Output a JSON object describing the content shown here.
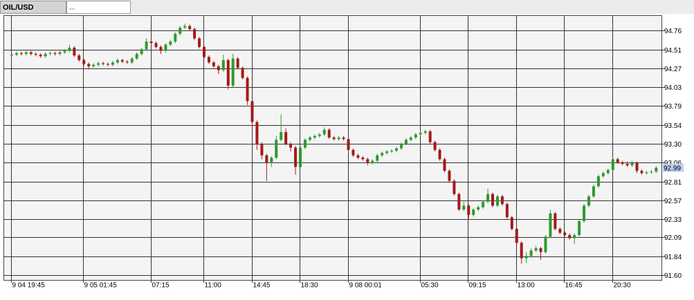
{
  "tabs": [
    "OIL/USD",
    "..."
  ],
  "chart_data": {
    "type": "candlestick",
    "categories": [
      "9 04 19:45",
      null,
      null,
      null,
      null,
      null,
      null,
      null,
      null,
      null,
      null,
      null,
      null,
      null,
      null,
      "9 05 01:45",
      null,
      null,
      null,
      null,
      null,
      null,
      null,
      null,
      null,
      null,
      null,
      null,
      null,
      "07:15",
      null,
      null,
      null,
      null,
      null,
      null,
      null,
      null,
      null,
      null,
      "11:00",
      null,
      null,
      null,
      null,
      null,
      null,
      null,
      null,
      null,
      "14:45",
      null,
      null,
      null,
      null,
      null,
      null,
      null,
      null,
      null,
      "18:30",
      null,
      null,
      null,
      null,
      null,
      null,
      null,
      null,
      null,
      "9 08 00:01",
      null,
      null,
      null,
      null,
      null,
      null,
      null,
      null,
      null,
      null,
      null,
      null,
      null,
      null,
      "05:30",
      null,
      null,
      null,
      null,
      null,
      null,
      null,
      null,
      null,
      "09:15",
      null,
      null,
      null,
      null,
      null,
      null,
      null,
      null,
      null,
      "13:00",
      null,
      null,
      null,
      null,
      null,
      null,
      null,
      null,
      null,
      "16:45",
      null,
      null,
      null,
      null,
      null,
      null,
      null,
      null,
      null,
      "20:30",
      null,
      null,
      null,
      null,
      null,
      null,
      null,
      null,
      null
    ],
    "open": [
      94.44,
      94.45,
      94.47,
      94.46,
      94.48,
      94.46,
      94.45,
      94.43,
      94.46,
      94.47,
      94.46,
      94.48,
      94.5,
      94.54,
      94.44,
      94.38,
      94.33,
      94.3,
      94.32,
      94.34,
      94.33,
      94.32,
      94.35,
      94.38,
      94.36,
      94.35,
      94.4,
      94.46,
      94.52,
      94.62,
      94.6,
      94.55,
      94.5,
      94.58,
      94.62,
      94.72,
      94.8,
      94.82,
      94.78,
      94.66,
      94.55,
      94.42,
      94.35,
      94.3,
      94.25,
      94.38,
      94.05,
      94.4,
      94.28,
      94.15,
      93.85,
      93.58,
      93.3,
      93.15,
      93.05,
      93.12,
      93.35,
      93.45,
      93.3,
      93.25,
      93.0,
      93.25,
      93.35,
      93.38,
      93.4,
      93.42,
      93.48,
      93.38,
      93.36,
      93.38,
      93.36,
      93.22,
      93.15,
      93.12,
      93.1,
      93.05,
      93.08,
      93.15,
      93.18,
      93.2,
      93.21,
      93.24,
      93.3,
      93.35,
      93.38,
      93.42,
      93.44,
      93.46,
      93.32,
      93.22,
      93.1,
      92.95,
      92.82,
      92.65,
      92.45,
      92.5,
      92.38,
      92.45,
      92.48,
      92.55,
      92.65,
      92.5,
      92.62,
      92.52,
      92.35,
      92.2,
      92.02,
      91.82,
      91.85,
      91.92,
      91.95,
      91.9,
      92.1,
      92.4,
      92.2,
      92.15,
      92.12,
      92.08,
      92.12,
      92.3,
      92.5,
      92.62,
      92.75,
      92.88,
      92.92,
      92.96,
      93.1,
      93.06,
      93.04,
      93.02,
      93.05,
      92.95,
      92.92,
      92.93,
      92.94
    ],
    "high": [
      94.47,
      94.49,
      94.49,
      94.5,
      94.5,
      94.48,
      94.47,
      94.48,
      94.49,
      94.49,
      94.5,
      94.52,
      94.58,
      94.56,
      94.46,
      94.4,
      94.35,
      94.34,
      94.36,
      94.36,
      94.35,
      94.37,
      94.4,
      94.4,
      94.38,
      94.42,
      94.48,
      94.54,
      94.66,
      94.64,
      94.62,
      94.57,
      94.6,
      94.64,
      94.74,
      94.82,
      94.85,
      94.84,
      94.8,
      94.68,
      94.57,
      94.44,
      94.37,
      94.32,
      94.45,
      94.4,
      94.46,
      94.42,
      94.3,
      94.17,
      93.87,
      93.6,
      93.32,
      93.17,
      93.14,
      93.4,
      93.68,
      93.5,
      93.32,
      93.27,
      93.27,
      93.37,
      93.4,
      93.42,
      93.44,
      93.51,
      93.5,
      93.4,
      93.4,
      93.4,
      93.38,
      93.24,
      93.17,
      93.14,
      93.12,
      93.1,
      93.17,
      93.2,
      93.22,
      93.23,
      93.26,
      93.32,
      93.37,
      93.4,
      93.44,
      93.46,
      93.48,
      93.48,
      93.34,
      93.24,
      93.12,
      92.97,
      92.84,
      92.67,
      92.55,
      92.52,
      92.47,
      92.5,
      92.57,
      92.72,
      92.67,
      92.64,
      92.64,
      92.54,
      92.37,
      92.22,
      92.04,
      91.9,
      91.95,
      91.98,
      91.97,
      92.12,
      92.45,
      92.42,
      92.22,
      92.17,
      92.14,
      92.14,
      92.32,
      92.52,
      92.64,
      92.77,
      92.9,
      92.94,
      92.98,
      93.13,
      93.12,
      93.08,
      93.07,
      93.08,
      93.07,
      92.97,
      92.95,
      92.96,
      93.01
    ],
    "low": [
      94.42,
      94.43,
      94.44,
      94.44,
      94.44,
      94.43,
      94.41,
      94.41,
      94.44,
      94.44,
      94.44,
      94.46,
      94.48,
      94.42,
      94.36,
      94.31,
      94.26,
      94.28,
      94.3,
      94.31,
      94.3,
      94.3,
      94.33,
      94.34,
      94.33,
      94.33,
      94.38,
      94.44,
      94.5,
      94.58,
      94.53,
      94.46,
      94.48,
      94.56,
      94.6,
      94.7,
      94.78,
      94.76,
      94.64,
      94.53,
      94.4,
      94.33,
      94.28,
      94.2,
      94.23,
      94.0,
      94.03,
      94.26,
      94.13,
      93.8,
      93.5,
      93.22,
      93.1,
      92.82,
      93.0,
      93.1,
      93.33,
      93.28,
      93.2,
      92.9,
      92.98,
      93.23,
      93.33,
      93.36,
      93.38,
      93.4,
      93.36,
      93.34,
      93.34,
      93.34,
      93.2,
      93.13,
      93.1,
      93.08,
      93.02,
      93.03,
      93.06,
      93.13,
      93.16,
      93.18,
      93.19,
      93.22,
      93.28,
      93.33,
      93.36,
      93.4,
      93.42,
      93.3,
      93.2,
      93.08,
      92.93,
      92.8,
      92.63,
      92.43,
      92.43,
      92.33,
      92.36,
      92.43,
      92.46,
      92.53,
      92.48,
      92.48,
      92.5,
      92.33,
      92.18,
      92.0,
      91.75,
      91.76,
      91.83,
      91.9,
      91.8,
      91.88,
      92.08,
      92.18,
      92.13,
      92.1,
      92.06,
      92.0,
      92.1,
      92.28,
      92.48,
      92.6,
      92.73,
      92.86,
      92.9,
      92.94,
      93.04,
      93.02,
      93.0,
      93.0,
      92.92,
      92.9,
      92.9,
      92.91,
      92.92
    ],
    "close": [
      94.45,
      94.47,
      94.46,
      94.48,
      94.46,
      94.45,
      94.43,
      94.46,
      94.47,
      94.46,
      94.48,
      94.5,
      94.54,
      94.44,
      94.38,
      94.33,
      94.3,
      94.32,
      94.34,
      94.33,
      94.32,
      94.35,
      94.38,
      94.36,
      94.35,
      94.4,
      94.46,
      94.52,
      94.62,
      94.6,
      94.55,
      94.5,
      94.58,
      94.62,
      94.72,
      94.8,
      94.82,
      94.78,
      94.66,
      94.55,
      94.42,
      94.35,
      94.3,
      94.25,
      94.38,
      94.05,
      94.4,
      94.28,
      94.15,
      93.85,
      93.58,
      93.3,
      93.15,
      93.05,
      93.12,
      93.35,
      93.45,
      93.3,
      93.25,
      93.0,
      93.25,
      93.35,
      93.38,
      93.4,
      93.42,
      93.48,
      93.38,
      93.36,
      93.38,
      93.36,
      93.22,
      93.15,
      93.12,
      93.1,
      93.05,
      93.08,
      93.15,
      93.18,
      93.2,
      93.21,
      93.24,
      93.3,
      93.35,
      93.38,
      93.42,
      93.44,
      93.46,
      93.32,
      93.22,
      93.1,
      92.95,
      92.82,
      92.65,
      92.45,
      92.5,
      92.38,
      92.45,
      92.48,
      92.55,
      92.65,
      92.5,
      92.62,
      92.52,
      92.35,
      92.2,
      92.02,
      91.82,
      91.85,
      91.92,
      91.95,
      91.9,
      92.1,
      92.4,
      92.2,
      92.15,
      92.12,
      92.08,
      92.12,
      92.3,
      92.5,
      92.62,
      92.75,
      92.88,
      92.92,
      92.96,
      93.1,
      93.06,
      93.04,
      93.02,
      93.05,
      92.95,
      92.92,
      92.93,
      92.94,
      92.99
    ],
    "up_color": "#2f9a2f",
    "down_color": "#a31a1a",
    "ylim": [
      91.54,
      94.96
    ],
    "yticks": [
      94.76,
      94.51,
      94.27,
      94.03,
      93.79,
      93.54,
      {
        "value": 93.3,
        "label": "93.30"
      },
      93.06,
      92.81,
      92.57,
      92.33,
      92.09,
      91.84,
      {
        "value": 91.6,
        "label": "91.60"
      }
    ],
    "grid": true,
    "last_price": 92.99
  }
}
